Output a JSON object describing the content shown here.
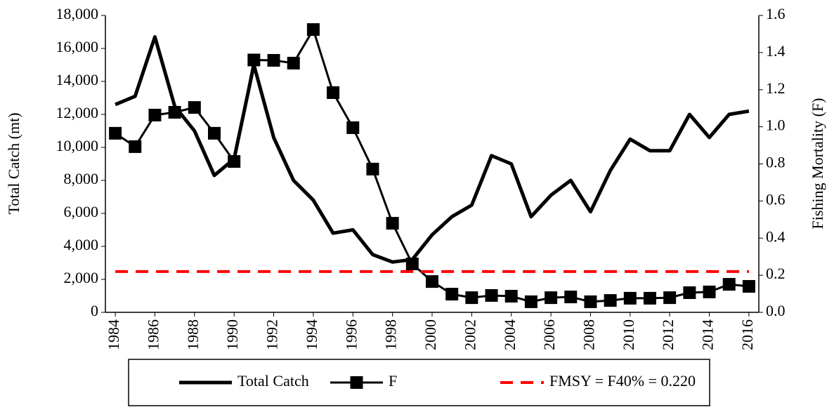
{
  "chart_data": {
    "type": "line",
    "ylabel": "Total Catch (mt)",
    "y2label": "Fishing Mortality (F)",
    "x": [
      1984,
      1985,
      1986,
      1987,
      1988,
      1989,
      1990,
      1991,
      1992,
      1993,
      1994,
      1995,
      1996,
      1997,
      1998,
      1999,
      2000,
      2001,
      2002,
      2003,
      2004,
      2005,
      2006,
      2007,
      2008,
      2009,
      2010,
      2011,
      2012,
      2013,
      2014,
      2015,
      2016
    ],
    "xlim": [
      1983.5,
      2016.5
    ],
    "xticks": [
      1984,
      1986,
      1988,
      1990,
      1992,
      1994,
      1996,
      1998,
      2000,
      2002,
      2004,
      2006,
      2008,
      2010,
      2012,
      2014,
      2016
    ],
    "ylim": [
      0,
      18000
    ],
    "yticks": [
      0,
      {
        "value": 2000,
        "label": "2,000"
      },
      {
        "value": 4000,
        "label": "4,000"
      },
      {
        "value": 6000,
        "label": "6,000"
      },
      {
        "value": 8000,
        "label": "8,000"
      },
      {
        "value": 10000,
        "label": "10,000"
      },
      {
        "value": 12000,
        "label": "12,000"
      },
      {
        "value": 14000,
        "label": "14,000"
      },
      {
        "value": 16000,
        "label": "16,000"
      },
      {
        "value": 18000,
        "label": "18,000"
      }
    ],
    "y2lim": [
      0,
      1.6
    ],
    "y2ticks": [
      {
        "value": 0,
        "label": "0.0"
      },
      0.2,
      0.4,
      0.6,
      0.8,
      {
        "value": 1,
        "label": "1.0"
      },
      1.2,
      1.4,
      1.6
    ],
    "grid": false,
    "legend": "bottom",
    "series": [
      {
        "name": "Total Catch",
        "color": "#000000",
        "axis": "y",
        "style": "solid",
        "values": [
          12600,
          13100,
          16700,
          12500,
          11000,
          8300,
          9300,
          15000,
          10600,
          8000,
          6800,
          4800,
          5000,
          3500,
          3050,
          3200,
          4700,
          5800,
          6500,
          9500,
          9000,
          5800,
          7100,
          8000,
          6100,
          8600,
          10500,
          9800,
          9800,
          12000,
          10600,
          12000,
          12200
        ]
      },
      {
        "name": "F",
        "color": "#000000",
        "axis": "y2",
        "style": "solid",
        "marker": "square",
        "values": [
          0.965,
          0.893,
          1.063,
          1.078,
          1.104,
          0.965,
          0.813,
          1.36,
          1.358,
          1.343,
          1.524,
          1.184,
          0.995,
          0.772,
          0.48,
          0.261,
          0.166,
          0.098,
          0.079,
          0.091,
          0.087,
          0.057,
          0.079,
          0.083,
          0.057,
          0.064,
          0.076,
          0.076,
          0.079,
          0.106,
          0.11,
          0.151,
          0.14
        ]
      },
      {
        "name": "FMSY = F40% = 0.220",
        "color": "#ff0000",
        "axis": "y2",
        "style": "dashed",
        "values": [
          0.22,
          0.22,
          0.22,
          0.22,
          0.22,
          0.22,
          0.22,
          0.22,
          0.22,
          0.22,
          0.22,
          0.22,
          0.22,
          0.22,
          0.22,
          0.22,
          0.22,
          0.22,
          0.22,
          0.22,
          0.22,
          0.22,
          0.22,
          0.22,
          0.22,
          0.22,
          0.22,
          0.22,
          0.22,
          0.22,
          0.22,
          0.22,
          0.22
        ]
      }
    ]
  }
}
